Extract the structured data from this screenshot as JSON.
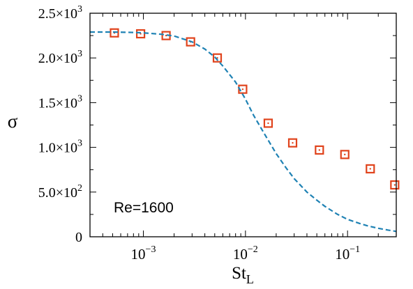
{
  "chart_data": {
    "type": "scatter",
    "xscale": "log",
    "xlim": [
      0.0003,
      0.3
    ],
    "ylim": [
      0,
      2500
    ],
    "xlabel": "St",
    "xlabel_sub": "L",
    "ylabel": "σ",
    "annotation": "Re=1600",
    "x_ticks": [
      {
        "value": 0.001,
        "base": "10",
        "exp": "−3"
      },
      {
        "value": 0.01,
        "base": "10",
        "exp": "−2"
      },
      {
        "value": 0.1,
        "base": "10",
        "exp": "−1"
      }
    ],
    "y_ticks": [
      {
        "value": 0,
        "mant": "0",
        "exp": ""
      },
      {
        "value": 500,
        "mant": "5.0×10",
        "exp": "2"
      },
      {
        "value": 1000,
        "mant": "1.0×10",
        "exp": "3"
      },
      {
        "value": 1500,
        "mant": "1.5×10",
        "exp": "3"
      },
      {
        "value": 2000,
        "mant": "2.0×10",
        "exp": "3"
      },
      {
        "value": 2500,
        "mant": "2.5×10",
        "exp": "3"
      }
    ],
    "series": [
      {
        "kind": "markers",
        "marker": "square-dot",
        "color": "#e0431c",
        "x": [
          0.00052,
          0.00094,
          0.00167,
          0.0029,
          0.0053,
          0.0094,
          0.0167,
          0.029,
          0.053,
          0.094,
          0.167,
          0.29
        ],
        "y": [
          2280,
          2270,
          2250,
          2180,
          2000,
          1650,
          1270,
          1050,
          970,
          920,
          760,
          580
        ]
      },
      {
        "kind": "line",
        "style": "dashed",
        "color": "#1f82b4",
        "x": [
          0.0003,
          0.0005,
          0.0008,
          0.001,
          0.0015,
          0.002,
          0.003,
          0.004,
          0.005,
          0.006,
          0.008,
          0.01,
          0.012,
          0.015,
          0.02,
          0.025,
          0.03,
          0.04,
          0.05,
          0.06,
          0.08,
          0.1,
          0.13,
          0.16,
          0.2,
          0.25,
          0.3
        ],
        "y": [
          2290,
          2290,
          2285,
          2280,
          2265,
          2245,
          2180,
          2100,
          2010,
          1910,
          1730,
          1540,
          1360,
          1170,
          930,
          770,
          650,
          500,
          410,
          340,
          250,
          195,
          150,
          120,
          95,
          75,
          60
        ]
      }
    ]
  }
}
